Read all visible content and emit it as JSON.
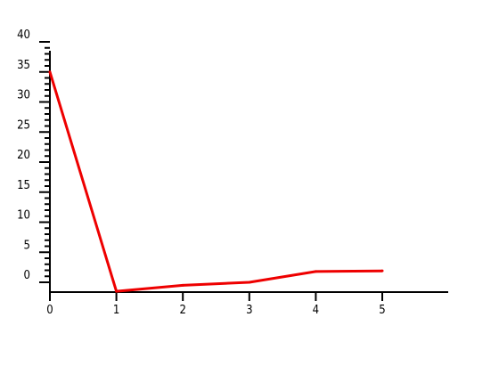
{
  "chart_data": {
    "type": "line",
    "title": "",
    "xlabel": "",
    "ylabel": "",
    "x": [
      0,
      1,
      2,
      3,
      4,
      5
    ],
    "series": [
      {
        "values": [
          35,
          -1.5,
          -0.5,
          0,
          1.8,
          1.9
        ],
        "color": "#ee0000"
      }
    ],
    "xlim": [
      0,
      6
    ],
    "ylim": [
      -1.5,
      40
    ],
    "x_ticks": [
      0,
      1,
      2,
      3,
      4,
      5
    ],
    "x_tick_labels": [
      "0",
      "1",
      "2",
      "3",
      "4",
      "5"
    ],
    "y_ticks": [
      0,
      5,
      10,
      15,
      20,
      25,
      30,
      35,
      40
    ],
    "y_tick_labels": [
      "0",
      "5",
      "10",
      "15",
      "20",
      "25",
      "30",
      "35",
      "40"
    ],
    "y_minor_step": 1,
    "grid": false,
    "legend": "none",
    "axis_color": "#000000"
  }
}
